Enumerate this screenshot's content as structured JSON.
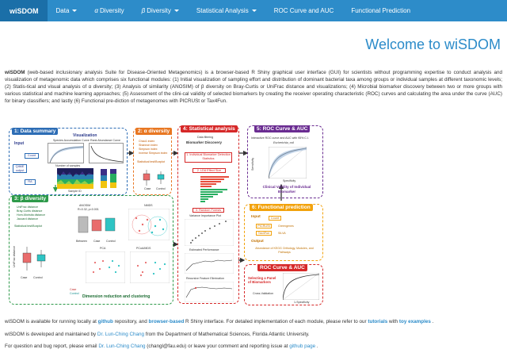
{
  "navbar": {
    "brand": "wiSDOM",
    "items": [
      {
        "label": "Data",
        "dropdown": true
      },
      {
        "symbol": "α",
        "label": "Diversity",
        "dropdown": false
      },
      {
        "symbol": "β",
        "label": "Diversity",
        "dropdown": true
      },
      {
        "label": "Statistical Analysis",
        "dropdown": true
      },
      {
        "label": "ROC Curve and AUC",
        "dropdown": false
      },
      {
        "label": "Functional Prediction",
        "dropdown": false
      }
    ]
  },
  "page_title": "Welcome to wiSDOM",
  "intro": {
    "bold_lead": "wiSDOM",
    "text": " (web-based inclusionary analysis Suite for Disease-Oriented Metagenomics) is a browser-based R Shiny graphical user interface (GUI) for scientists without programming expertise to conduct analysis and visualization of metagenomic data which comprises six functional modules: (1) Initial visualization of sampling effort and distribution of dominant bacterial taxa among groups or individual samples at different taxonomic levels; (2) Statis-tical and visual analysis of α diversity; (3) Analysis of similarity (ANOSIM) of β diversity on Bray-Curtis or UniFrac distance and visualizations; (4) Microbial biomarker discovery between two or more groups with various statistical and machine learning approaches; (5) Assessment of the clini-cal validity of selected biomarkers by creating the receiver operating characteristic (ROC) curves and calculating the area under the curve (AUC) for binary classifiers; and lastly (6) Functional pre-diction of metagenomes with PICRUSt or Tax4Fun."
  },
  "figure": {
    "p1": {
      "title": "1: Data summary",
      "input": "Input",
      "count": "Count",
      "qiime": "QIIME output",
      "ra": "RA",
      "visualization": "Visualization",
      "sac": "Species Accumulation Curve",
      "rac": "Rank Abundance Curve",
      "n_samples": "Number of samples",
      "sample_id": "Sample ID",
      "ra_axis": "RA (%)",
      "count_axis": "Count"
    },
    "p2": {
      "title": "2: α diversity",
      "indices": [
        "Chao1 index",
        "Shannon index",
        "Simpson index",
        "Inverse Simpson index"
      ],
      "stat": "Statistical test/Boxplot",
      "case": "Case",
      "control": "Control",
      "yaxis": "Diversity index"
    },
    "p3": {
      "title": "3: β diversity",
      "dists": [
        "UniFrac distance",
        "Bray-Curtis distance",
        "Horn-Morisita distance",
        "Jaccard distance"
      ],
      "stat": "Statistical test/Boxplot",
      "anosim": "ANOSIM",
      "r_val": "R=0.32, p<0.001",
      "nmds": "NMDS",
      "pca": "PCA",
      "pcoa": "PCoA/MDS",
      "dim": "Dimension reduction and clustering",
      "case": "Case",
      "control": "Control",
      "between": "Between",
      "case_ax": "Case",
      "control_ax": "Control",
      "yaxis": "UniFrac distance"
    },
    "p4": {
      "title": "4: Statistical analysis",
      "sub": "Data filtering",
      "biom": "Biomarker Discovery",
      "b1": "1. Individual Biomarker Detection Statistics",
      "b2": "2. LDA Effect Size",
      "b3": "3. Random Forests",
      "vip": "Variance Importance Plot",
      "est": "Estimated Performance",
      "rfe": "Recursive Feature Elimination"
    },
    "p5": {
      "title": "5: ROC Curve & AUC",
      "sub": "Interactive ROC curve and AUC with 95% C.I.",
      "organism": "Escherichia_coli",
      "clin": "Clinical Validity of Individual Biomarker",
      "sens": "Sensitivity",
      "spec": "Specificity"
    },
    "p6": {
      "title": "6: Functional prediction",
      "input": "Input",
      "count": "Count",
      "picrust": "PICRUSt",
      "greengenes": "Greengenes",
      "tax4fun": "Tax4Fun",
      "silva": "SILVA",
      "output": "Output",
      "out_text": "Abundance of KEGG Orthology, Modules, and Pathways"
    },
    "p7": {
      "title": "ROC Curve & AUC",
      "sub": "Selecting a Panel of Biomarkers",
      "cv": "Cross-Validation",
      "sens": "Sensitivity",
      "spec": "1-Specificity"
    }
  },
  "footer": {
    "line1_a": "wiSDOM is available for running locally at ",
    "line1_github": "github",
    "line1_b": " repository, and ",
    "line1_browser": "browser-based",
    "line1_c": " R Shiny interface. For detailed implementation of each module, please refer to our ",
    "line1_tutorials": "tutorials",
    "line1_d": " with ",
    "line1_toy": "toy examples",
    "line1_e": " .",
    "line2_a": "wiSDOM is developed and maintained by ",
    "line2_name": "Dr. Lun-Ching Chang",
    "line2_b": " from the Department of Mathematical Sciences, Florida Atlantic University.",
    "line3_a": "For question and bug report, please email ",
    "line3_name": "Dr. Lun-Ching Chang",
    "line3_b": " (changl@fau.edu) or leave your comment and reporting issue at ",
    "line3_link": "github page",
    "line3_c": " ."
  },
  "colors": {
    "navbar": "#2d8cc9",
    "brand": "#1b6fa8",
    "title": "#2b8bc9",
    "p1": "#2d6db5",
    "p2": "#e87722",
    "p3": "#2e9a4a",
    "p4": "#d62828",
    "p5": "#6a2c91",
    "p6": "#f2a20c",
    "p7": "#d62828"
  }
}
